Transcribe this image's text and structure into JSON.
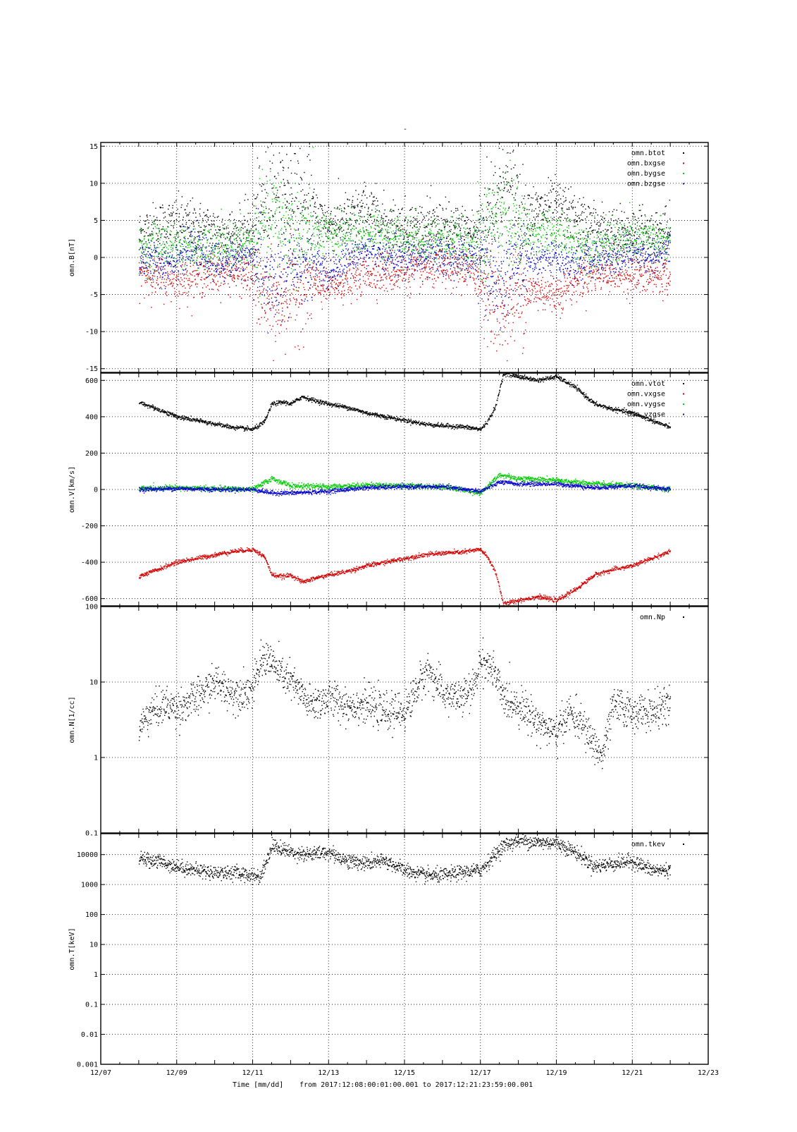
{
  "top_mark": "-",
  "footer": {
    "xlabel": "Time [mm/dd]",
    "range_text": "from 2017:12:08:00:01:00.001  to  2017:12:21:23:59:00.001"
  },
  "chart_data": [
    {
      "type": "scatter",
      "name": "panel-b",
      "ylabel": "omn.B[nT]",
      "yscale": "linear",
      "ylim": [
        -15.5,
        15.5
      ],
      "yticks": [
        -15,
        -10,
        -5,
        0,
        5,
        10,
        15
      ],
      "ytick_labels": [
        "-15",
        "-10",
        "-5",
        "0",
        "5",
        "10",
        "15"
      ],
      "xlim": [
        "12/07",
        "12/23"
      ],
      "xticks": [
        "12/07",
        "12/09",
        "12/11",
        "12/13",
        "12/15",
        "12/17",
        "12/19",
        "12/21",
        "12/23"
      ],
      "grid": true,
      "legend_position": "top-right",
      "series": [
        {
          "name": "omn.btot",
          "color": "#000000",
          "x": [
            8.0,
            8.5,
            9.0,
            9.5,
            10.0,
            10.5,
            11.0,
            11.3,
            11.6,
            12.0,
            12.5,
            13.0,
            13.5,
            14.0,
            14.5,
            15.0,
            15.5,
            16.0,
            16.5,
            17.0,
            17.3,
            17.6,
            18.0,
            18.5,
            19.0,
            19.5,
            20.0,
            20.5,
            21.0,
            21.5,
            22.0
          ],
          "y": [
            3,
            4,
            4.5,
            4,
            3.5,
            3,
            4,
            7,
            10,
            8,
            6,
            4.5,
            5,
            6.5,
            4.5,
            4,
            4,
            4,
            3.5,
            3,
            7,
            10,
            7,
            6,
            7,
            5,
            4,
            3,
            3.5,
            3,
            3
          ]
        },
        {
          "name": "omn.bxgse",
          "color": "#d40000",
          "x": [
            8.0,
            8.5,
            9.0,
            9.5,
            10.0,
            10.5,
            11.0,
            11.3,
            11.6,
            12.0,
            12.5,
            13.0,
            13.5,
            14.0,
            14.5,
            15.0,
            15.5,
            16.0,
            16.5,
            17.0,
            17.3,
            17.6,
            18.0,
            18.5,
            19.0,
            19.5,
            20.0,
            20.5,
            21.0,
            21.5,
            22.0
          ],
          "y": [
            -2,
            -2.5,
            -3,
            -2.5,
            -2,
            -2,
            -2.5,
            -5,
            -7,
            -4.5,
            -4,
            -4,
            -3,
            -2,
            -2,
            -2,
            -1.5,
            -1.5,
            -1.5,
            -2.5,
            -6,
            -7,
            -5,
            -4.5,
            -5,
            -3,
            -2,
            -2,
            -2.5,
            -2.5,
            -2.5
          ]
        },
        {
          "name": "omn.bygse",
          "color": "#00cc00",
          "x": [
            8.0,
            8.5,
            9.0,
            9.5,
            10.0,
            10.5,
            11.0,
            11.3,
            11.6,
            12.0,
            12.5,
            13.0,
            13.5,
            14.0,
            14.5,
            15.0,
            15.5,
            16.0,
            16.5,
            17.0,
            17.3,
            17.6,
            18.0,
            18.5,
            19.0,
            19.5,
            20.0,
            20.5,
            21.0,
            21.5,
            22.0
          ],
          "y": [
            1,
            2,
            1.5,
            1,
            1,
            1.5,
            2,
            4,
            6,
            3,
            3,
            3,
            3,
            3.5,
            3,
            3,
            2.5,
            2.5,
            2,
            2,
            5,
            6,
            4,
            3,
            3,
            2,
            1.5,
            2,
            2.5,
            2.5,
            2
          ]
        },
        {
          "name": "omn.bzgse",
          "color": "#0000cc",
          "x": [
            8.0,
            8.5,
            9.0,
            9.5,
            10.0,
            10.5,
            11.0,
            11.3,
            11.6,
            12.0,
            12.5,
            13.0,
            13.5,
            14.0,
            14.5,
            15.0,
            15.5,
            16.0,
            16.5,
            17.0,
            17.3,
            17.6,
            18.0,
            18.5,
            19.0,
            19.5,
            20.0,
            20.5,
            21.0,
            21.5,
            22.0
          ],
          "y": [
            0,
            -1,
            0,
            1,
            -1,
            0,
            0,
            -3,
            -4,
            -1,
            -1,
            -2,
            0,
            1,
            0,
            0,
            0,
            0,
            0,
            0,
            -4,
            -3,
            0,
            0,
            0,
            -1,
            0,
            0,
            1,
            0,
            1
          ]
        }
      ]
    },
    {
      "type": "scatter",
      "name": "panel-v",
      "ylabel": "omn.V[km/s]",
      "yscale": "linear",
      "ylim": [
        -640,
        640
      ],
      "yticks": [
        -600,
        -400,
        -200,
        0,
        200,
        400,
        600
      ],
      "ytick_labels": [
        "-600",
        "-400",
        "-200",
        "0",
        "200",
        "400",
        "600"
      ],
      "xlim": [
        "12/07",
        "12/23"
      ],
      "grid": true,
      "legend_position": "top-right",
      "series": [
        {
          "name": "omn.vtot",
          "color": "#000000",
          "x": [
            8.0,
            8.5,
            9.0,
            9.5,
            10.0,
            10.5,
            11.0,
            11.3,
            11.5,
            11.8,
            12.0,
            12.3,
            12.6,
            13.0,
            13.5,
            14.0,
            14.5,
            15.0,
            15.5,
            16.0,
            16.5,
            17.0,
            17.2,
            17.4,
            17.6,
            18.0,
            18.5,
            19.0,
            19.5,
            20.0,
            20.5,
            21.0,
            21.5,
            22.0
          ],
          "y": [
            480,
            440,
            400,
            380,
            360,
            340,
            330,
            370,
            470,
            480,
            470,
            510,
            490,
            470,
            450,
            420,
            400,
            380,
            360,
            350,
            345,
            330,
            380,
            460,
            640,
            620,
            600,
            620,
            560,
            470,
            440,
            420,
            380,
            340
          ]
        },
        {
          "name": "omn.vxgse",
          "color": "#d40000",
          "x": [
            8.0,
            8.5,
            9.0,
            9.5,
            10.0,
            10.5,
            11.0,
            11.3,
            11.5,
            11.8,
            12.0,
            12.3,
            12.6,
            13.0,
            13.5,
            14.0,
            14.5,
            15.0,
            15.5,
            16.0,
            16.5,
            17.0,
            17.2,
            17.4,
            17.6,
            18.0,
            18.5,
            19.0,
            19.5,
            20.0,
            20.5,
            21.0,
            21.5,
            22.0
          ],
          "y": [
            -480,
            -440,
            -400,
            -380,
            -360,
            -340,
            -330,
            -370,
            -470,
            -480,
            -470,
            -510,
            -490,
            -470,
            -450,
            -420,
            -400,
            -380,
            -360,
            -350,
            -345,
            -330,
            -380,
            -460,
            -630,
            -610,
            -590,
            -610,
            -550,
            -470,
            -440,
            -420,
            -380,
            -340
          ]
        },
        {
          "name": "omn.vygse",
          "color": "#00cc00",
          "x": [
            8.0,
            9.0,
            10.0,
            11.0,
            11.5,
            12.0,
            13.0,
            14.0,
            15.0,
            16.0,
            17.0,
            17.5,
            18.0,
            19.0,
            20.0,
            21.0,
            22.0
          ],
          "y": [
            5,
            10,
            5,
            0,
            60,
            20,
            15,
            25,
            20,
            15,
            -20,
            80,
            60,
            50,
            30,
            20,
            0
          ]
        },
        {
          "name": "omn.vzgse",
          "color": "#0000cc",
          "x": [
            8.0,
            9.0,
            10.0,
            11.0,
            11.5,
            12.0,
            13.0,
            14.0,
            15.0,
            16.0,
            17.0,
            17.5,
            18.0,
            19.0,
            20.0,
            21.0,
            22.0
          ],
          "y": [
            0,
            5,
            0,
            0,
            -20,
            -20,
            -10,
            10,
            15,
            15,
            -10,
            40,
            30,
            30,
            10,
            20,
            0
          ]
        }
      ]
    },
    {
      "type": "scatter",
      "name": "panel-n",
      "ylabel": "omn.N[1/cc]",
      "yscale": "log",
      "ylim": [
        0.1,
        100
      ],
      "yticks": [
        0.1,
        1,
        10,
        100
      ],
      "ytick_labels": [
        "0.1",
        "1",
        "10",
        "100"
      ],
      "xlim": [
        "12/07",
        "12/23"
      ],
      "grid": true,
      "legend_position": "top-right",
      "series": [
        {
          "name": "omn.Np",
          "color": "#000000",
          "x": [
            8.0,
            8.3,
            8.7,
            9.0,
            9.5,
            10.0,
            10.5,
            11.0,
            11.2,
            11.4,
            11.6,
            12.0,
            12.5,
            13.0,
            13.5,
            14.0,
            14.5,
            15.0,
            15.3,
            15.6,
            16.0,
            16.5,
            16.8,
            17.0,
            17.3,
            17.6,
            18.0,
            18.5,
            19.0,
            19.3,
            19.6,
            20.0,
            20.2,
            20.5,
            21.0,
            21.5,
            22.0
          ],
          "y": [
            2.5,
            4,
            5,
            4.5,
            6,
            10,
            7,
            8,
            18,
            22,
            15,
            10,
            5,
            6,
            5,
            5,
            4,
            4,
            8,
            15,
            7,
            6,
            8,
            20,
            15,
            6,
            5,
            3,
            2,
            4,
            3,
            1.5,
            1,
            5,
            4,
            4,
            5
          ]
        }
      ]
    },
    {
      "type": "scatter",
      "name": "panel-t",
      "ylabel": "omn.T[keV]",
      "yscale": "log",
      "ylim": [
        0.001,
        50000
      ],
      "yticks": [
        0.001,
        0.01,
        0.1,
        1,
        10,
        100,
        1000,
        10000
      ],
      "ytick_labels": [
        "0.001",
        "0.01",
        "0.1",
        "1",
        "10",
        "100",
        "1000",
        "10000"
      ],
      "xlim": [
        "12/07",
        "12/23"
      ],
      "grid": true,
      "legend_position": "top-right",
      "series": [
        {
          "name": "omn.tkev",
          "color": "#000000",
          "x": [
            8.0,
            8.5,
            9.0,
            9.5,
            10.0,
            10.5,
            11.0,
            11.2,
            11.5,
            12.0,
            12.5,
            13.0,
            13.5,
            14.0,
            14.5,
            15.0,
            15.5,
            16.0,
            16.5,
            17.0,
            17.3,
            17.6,
            18.0,
            18.5,
            19.0,
            19.5,
            20.0,
            20.5,
            21.0,
            21.5,
            22.0
          ],
          "y": [
            7000,
            6000,
            4000,
            3000,
            2500,
            2500,
            2000,
            1800,
            20000,
            12000,
            10000,
            12000,
            6000,
            5000,
            6000,
            3000,
            2000,
            2000,
            2500,
            3000,
            8000,
            20000,
            30000,
            25000,
            25000,
            12000,
            4000,
            5000,
            6000,
            3000,
            3000
          ]
        }
      ]
    }
  ]
}
